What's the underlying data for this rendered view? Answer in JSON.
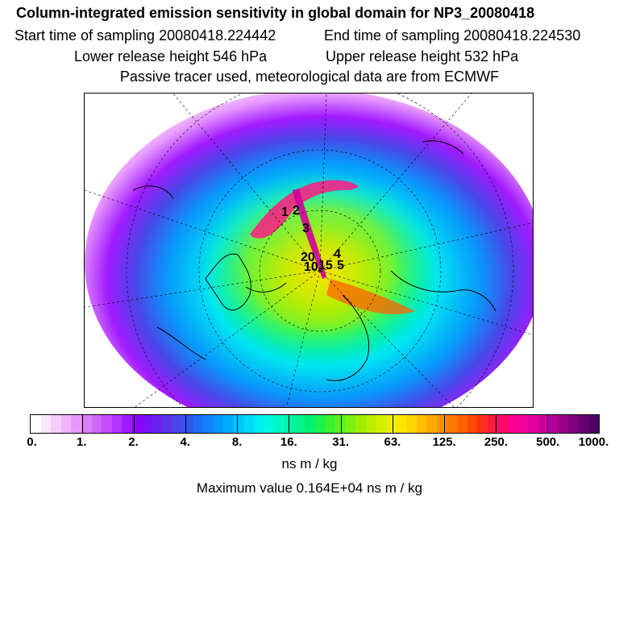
{
  "title": "Column-integrated emission sensitivity in global domain for NP3_20080418",
  "sampling": {
    "start_label": "Start time of sampling 20080418.224442",
    "end_label": "End time of sampling 20080418.224530"
  },
  "release": {
    "lower_label": "Lower release height  546 hPa",
    "upper_label": "Upper release height  532 hPa"
  },
  "info_line": "Passive tracer used, meteorological data are from ECMWF",
  "map": {
    "projection": "polar-stereographic",
    "point_labels": [
      "1",
      "2",
      "3",
      "4",
      "5",
      "10",
      "15",
      "20"
    ]
  },
  "colorbar": {
    "tick_labels": [
      "0.",
      "1.",
      "2.",
      "4.",
      "8.",
      "16.",
      "31.",
      "63.",
      "125.",
      "250.",
      "500.",
      "1000."
    ],
    "colors": [
      "#ffffff",
      "#fbe6ff",
      "#f5ccff",
      "#efb3ff",
      "#e799ff",
      "#dd80ff",
      "#d166ff",
      "#c34dff",
      "#b333ff",
      "#a01aff",
      "#8c00ff",
      "#7a12f5",
      "#6a24f0",
      "#5a36eb",
      "#4848e8",
      "#3058f0",
      "#1f6cf5",
      "#1282fa",
      "#0898fc",
      "#00aefc",
      "#00c4fa",
      "#00daf7",
      "#00ecf2",
      "#00f7e0",
      "#00f7c4",
      "#00f5a8",
      "#00f58c",
      "#00f070",
      "#1ef050",
      "#3cf030",
      "#5cf01e",
      "#7cf010",
      "#9cf000",
      "#b8f000",
      "#d2f000",
      "#e8f000",
      "#fae600",
      "#ffd400",
      "#ffc000",
      "#ffaa00",
      "#ff9200",
      "#ff7a00",
      "#ff6200",
      "#ff4a00",
      "#ff3018",
      "#ff1a40",
      "#ff0a68",
      "#ff0090",
      "#f500a0",
      "#e000a0",
      "#c8009c",
      "#b00094",
      "#98008a",
      "#80007e",
      "#660070",
      "#4c0060"
    ]
  },
  "unit_label": "ns m / kg",
  "max_value_label": "Maximum value  0.164E+04 ns m / kg"
}
